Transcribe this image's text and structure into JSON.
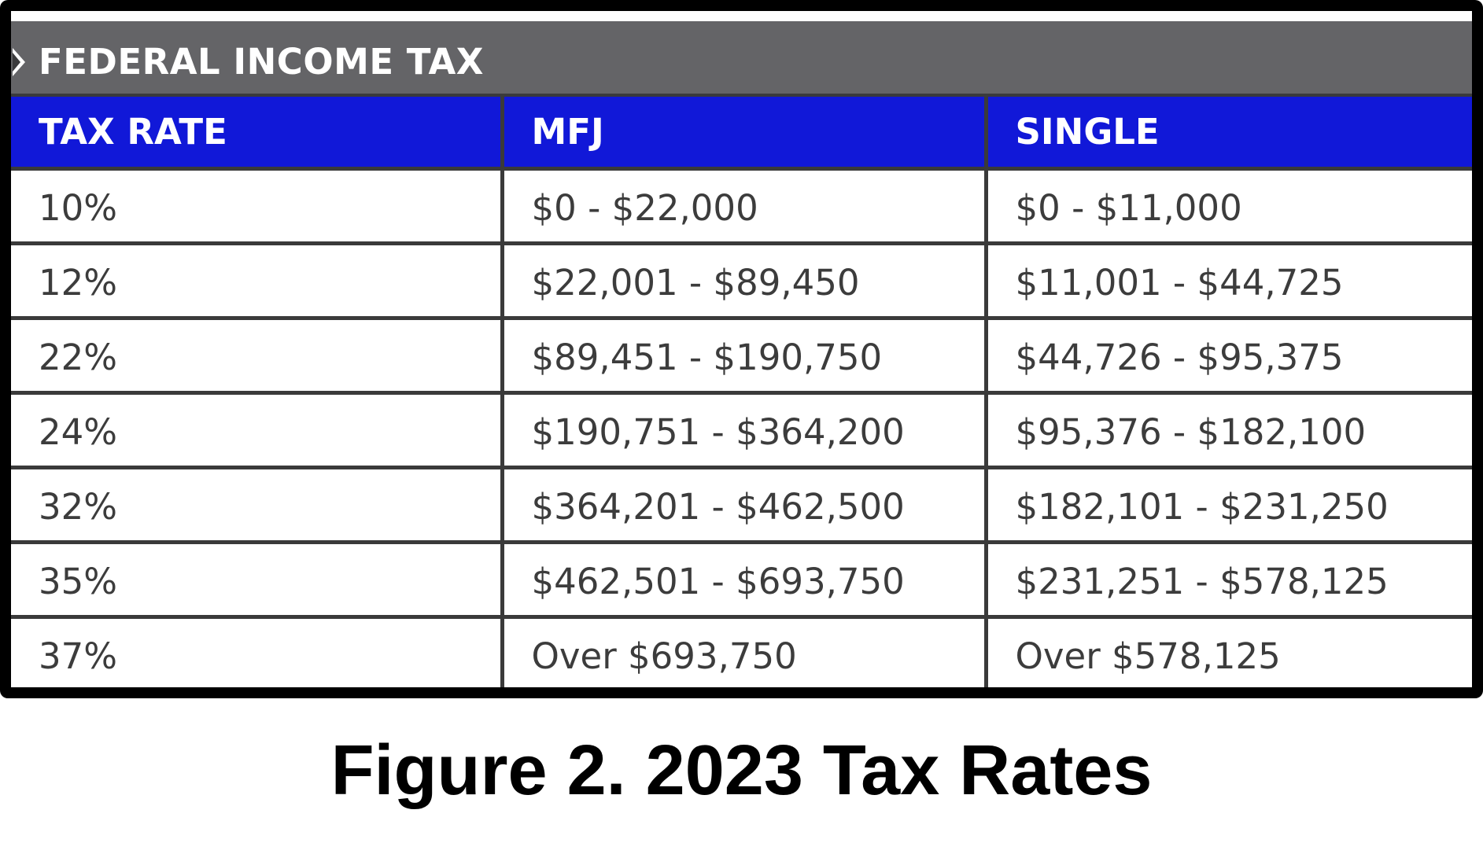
{
  "section": {
    "title": "FEDERAL INCOME TAX"
  },
  "table": {
    "headers": [
      "TAX RATE",
      "MFJ",
      "SINGLE"
    ],
    "rows": [
      [
        "10%",
        "$0 - $22,000",
        "$0 - $11,000"
      ],
      [
        "12%",
        "$22,001 - $89,450",
        "$11,001 - $44,725"
      ],
      [
        "22%",
        "$89,451 - $190,750",
        "$44,726 - $95,375"
      ],
      [
        "24%",
        "$190,751 - $364,200",
        "$95,376 - $182,100"
      ],
      [
        "32%",
        "$364,201 - $462,500",
        "$182,101 - $231,250"
      ],
      [
        "35%",
        "$462,501 - $693,750",
        "$231,251 - $578,125"
      ],
      [
        "37%",
        "Over $693,750",
        "Over $578,125"
      ]
    ]
  },
  "caption": "Figure 2. 2023 Tax Rates",
  "colors": {
    "section_header_bg": "#646467",
    "table_header_bg": "#1118d8",
    "border": "#000000",
    "cell_text": "#3c3c3c"
  },
  "icons": {
    "section_toggle": "caret-right-icon"
  }
}
